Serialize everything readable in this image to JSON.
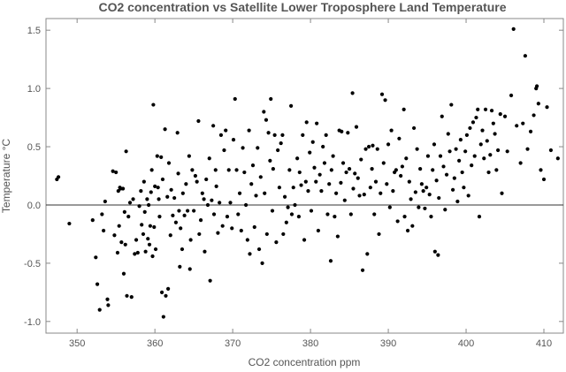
{
  "chart_data": {
    "type": "scatter",
    "title": "CO2 concentration vs Satellite Lower Troposphere Land Temperature",
    "xlabel": "CO2 concentration ppm",
    "ylabel": "Temperature °C",
    "xlim": [
      346,
      412.5
    ],
    "ylim": [
      -1.1,
      1.6
    ],
    "xticks": [
      350,
      360,
      370,
      380,
      390,
      400,
      410
    ],
    "yticks": [
      -1.0,
      -0.5,
      0.0,
      0.5,
      1.0,
      1.5
    ],
    "ytick_labels": [
      "-1.0",
      "-0.5",
      "0.0",
      "0.5",
      "1.0",
      "1.5"
    ],
    "reference_line_y": 0,
    "grid": false,
    "points": [
      [
        347.4,
        0.22
      ],
      [
        347.6,
        0.24
      ],
      [
        349.0,
        -0.16
      ],
      [
        352.0,
        -0.13
      ],
      [
        352.4,
        -0.45
      ],
      [
        352.6,
        -0.68
      ],
      [
        352.9,
        -0.9
      ],
      [
        353.2,
        -0.08
      ],
      [
        353.4,
        -0.22
      ],
      [
        353.6,
        0.03
      ],
      [
        353.9,
        -0.81
      ],
      [
        354.0,
        -0.86
      ],
      [
        354.6,
        0.29
      ],
      [
        354.8,
        -0.26
      ],
      [
        355.0,
        0.28
      ],
      [
        355.2,
        -0.41
      ],
      [
        355.3,
        0.12
      ],
      [
        355.4,
        -0.18
      ],
      [
        355.5,
        0.15
      ],
      [
        355.6,
        0.14
      ],
      [
        355.7,
        -0.32
      ],
      [
        355.9,
        0.14
      ],
      [
        356.0,
        -0.59
      ],
      [
        356.1,
        -0.06
      ],
      [
        356.2,
        -0.34
      ],
      [
        356.3,
        0.46
      ],
      [
        356.4,
        -0.78
      ],
      [
        356.6,
        -0.1
      ],
      [
        356.8,
        0.02
      ],
      [
        357.0,
        -0.79
      ],
      [
        357.2,
        0.05
      ],
      [
        357.4,
        -0.42
      ],
      [
        357.6,
        -0.3
      ],
      [
        357.8,
        -0.41
      ],
      [
        358.0,
        -0.01
      ],
      [
        358.2,
        0.12
      ],
      [
        358.3,
        -0.17
      ],
      [
        358.5,
        -0.25
      ],
      [
        358.6,
        0.2
      ],
      [
        358.7,
        -0.06
      ],
      [
        358.8,
        -0.4
      ],
      [
        359.0,
        0.05
      ],
      [
        359.1,
        -0.29
      ],
      [
        359.2,
        0.0
      ],
      [
        359.3,
        -0.34
      ],
      [
        359.4,
        -0.18
      ],
      [
        359.5,
        0.11
      ],
      [
        359.6,
        0.3
      ],
      [
        359.7,
        -0.44
      ],
      [
        359.8,
        0.86
      ],
      [
        359.9,
        -0.19
      ],
      [
        360.0,
        0.16
      ],
      [
        360.1,
        -0.38
      ],
      [
        360.3,
        0.42
      ],
      [
        360.4,
        0.15
      ],
      [
        360.5,
        0.05
      ],
      [
        360.6,
        -0.1
      ],
      [
        360.8,
        0.41
      ],
      [
        360.9,
        -0.75
      ],
      [
        361.0,
        0.22
      ],
      [
        361.1,
        -0.96
      ],
      [
        361.3,
        0.65
      ],
      [
        361.4,
        -0.78
      ],
      [
        361.6,
        0.07
      ],
      [
        361.7,
        -0.72
      ],
      [
        361.8,
        0.36
      ],
      [
        362.0,
        -0.26
      ],
      [
        362.1,
        0.13
      ],
      [
        362.3,
        -0.09
      ],
      [
        362.5,
        0.06
      ],
      [
        362.7,
        -0.15
      ],
      [
        362.9,
        0.62
      ],
      [
        363.0,
        0.27
      ],
      [
        363.1,
        -0.05
      ],
      [
        363.2,
        -0.53
      ],
      [
        363.3,
        -0.2
      ],
      [
        363.5,
        -0.38
      ],
      [
        363.6,
        0.1
      ],
      [
        363.8,
        -0.09
      ],
      [
        364.0,
        0.18
      ],
      [
        364.2,
        -0.05
      ],
      [
        364.4,
        0.42
      ],
      [
        364.5,
        -0.55
      ],
      [
        364.6,
        -0.3
      ],
      [
        364.8,
        0.3
      ],
      [
        365.0,
        -0.05
      ],
      [
        365.2,
        0.25
      ],
      [
        365.4,
        0.2
      ],
      [
        365.6,
        0.72
      ],
      [
        365.7,
        -0.25
      ],
      [
        365.9,
        -0.13
      ],
      [
        366.1,
        0.1
      ],
      [
        366.3,
        0.05
      ],
      [
        366.4,
        -0.4
      ],
      [
        366.6,
        0.22
      ],
      [
        366.8,
        0.0
      ],
      [
        367.0,
        0.4
      ],
      [
        367.1,
        -0.65
      ],
      [
        367.3,
        0.04
      ],
      [
        367.5,
        0.68
      ],
      [
        367.6,
        -0.08
      ],
      [
        367.8,
        0.3
      ],
      [
        367.9,
        0.16
      ],
      [
        368.1,
        -0.24
      ],
      [
        368.3,
        0.02
      ],
      [
        368.5,
        0.6
      ],
      [
        368.7,
        -0.18
      ],
      [
        368.9,
        0.47
      ],
      [
        369.1,
        0.64
      ],
      [
        369.3,
        -0.1
      ],
      [
        369.5,
        0.3
      ],
      [
        369.7,
        0.02
      ],
      [
        369.9,
        -0.2
      ],
      [
        370.1,
        0.56
      ],
      [
        370.3,
        0.91
      ],
      [
        370.5,
        0.3
      ],
      [
        370.7,
        -0.08
      ],
      [
        370.9,
        0.1
      ],
      [
        371.1,
        -0.22
      ],
      [
        371.3,
        0.49
      ],
      [
        371.5,
        0.28
      ],
      [
        371.7,
        0.0
      ],
      [
        371.9,
        -0.3
      ],
      [
        372.1,
        0.64
      ],
      [
        372.2,
        -0.42
      ],
      [
        372.4,
        0.18
      ],
      [
        372.6,
        0.34
      ],
      [
        372.8,
        -0.19
      ],
      [
        373.0,
        0.08
      ],
      [
        373.2,
        0.49
      ],
      [
        373.4,
        -0.38
      ],
      [
        373.6,
        0.24
      ],
      [
        373.8,
        -0.5
      ],
      [
        374.0,
        0.8
      ],
      [
        374.1,
        0.1
      ],
      [
        374.3,
        0.73
      ],
      [
        374.4,
        -0.25
      ],
      [
        374.6,
        0.62
      ],
      [
        374.8,
        0.38
      ],
      [
        374.9,
        0.91
      ],
      [
        375.1,
        -0.05
      ],
      [
        375.2,
        0.31
      ],
      [
        375.4,
        0.6
      ],
      [
        375.6,
        -0.32
      ],
      [
        375.8,
        0.47
      ],
      [
        376.0,
        0.15
      ],
      [
        376.2,
        0.53
      ],
      [
        376.4,
        0.6
      ],
      [
        376.5,
        -0.25
      ],
      [
        376.7,
        0.07
      ],
      [
        376.9,
        -0.15
      ],
      [
        377.1,
        -0.02
      ],
      [
        377.3,
        0.3
      ],
      [
        377.5,
        0.85
      ],
      [
        377.6,
        -0.08
      ],
      [
        377.8,
        0.15
      ],
      [
        378.0,
        0.0
      ],
      [
        378.3,
        0.4
      ],
      [
        378.5,
        -0.1
      ],
      [
        378.6,
        0.28
      ],
      [
        378.8,
        0.17
      ],
      [
        379.0,
        0.6
      ],
      [
        379.2,
        -0.3
      ],
      [
        379.4,
        0.2
      ],
      [
        379.5,
        0.71
      ],
      [
        379.7,
        0.12
      ],
      [
        379.9,
        0.45
      ],
      [
        380.1,
        -0.05
      ],
      [
        380.3,
        0.54
      ],
      [
        380.5,
        0.32
      ],
      [
        380.7,
        0.2
      ],
      [
        380.8,
        0.7
      ],
      [
        381.0,
        -0.22
      ],
      [
        381.2,
        0.26
      ],
      [
        381.4,
        0.12
      ],
      [
        381.6,
        0.5
      ],
      [
        381.8,
        0.36
      ],
      [
        382.0,
        0.6
      ],
      [
        382.2,
        -0.08
      ],
      [
        382.4,
        0.18
      ],
      [
        382.6,
        -0.48
      ],
      [
        382.7,
        0.3
      ],
      [
        382.9,
        0.42
      ],
      [
        383.1,
        -0.1
      ],
      [
        383.3,
        0.1
      ],
      [
        383.5,
        -0.27
      ],
      [
        383.7,
        0.64
      ],
      [
        383.9,
        0.19
      ],
      [
        384.0,
        0.63
      ],
      [
        384.2,
        0.36
      ],
      [
        384.4,
        0.04
      ],
      [
        384.6,
        0.28
      ],
      [
        384.8,
        0.62
      ],
      [
        385.0,
        0.31
      ],
      [
        385.2,
        -0.08
      ],
      [
        385.4,
        0.96
      ],
      [
        385.5,
        0.14
      ],
      [
        385.7,
        0.27
      ],
      [
        385.9,
        0.67
      ],
      [
        386.1,
        0.23
      ],
      [
        386.3,
        0.08
      ],
      [
        386.5,
        0.39
      ],
      [
        386.7,
        -0.56
      ],
      [
        386.9,
        0.09
      ],
      [
        387.1,
        0.48
      ],
      [
        387.3,
        -0.42
      ],
      [
        387.5,
        0.5
      ],
      [
        387.7,
        0.15
      ],
      [
        387.9,
        0.31
      ],
      [
        388.0,
        0.51
      ],
      [
        388.2,
        -0.08
      ],
      [
        388.4,
        0.2
      ],
      [
        388.6,
        0.48
      ],
      [
        388.8,
        -0.25
      ],
      [
        389.0,
        0.1
      ],
      [
        389.2,
        0.95
      ],
      [
        389.4,
        0.36
      ],
      [
        389.6,
        0.9
      ],
      [
        389.8,
        0.18
      ],
      [
        390.0,
        0.52
      ],
      [
        390.2,
        -0.02
      ],
      [
        390.4,
        0.64
      ],
      [
        390.6,
        0.12
      ],
      [
        390.8,
        0.28
      ],
      [
        391.0,
        0.3
      ],
      [
        391.2,
        -0.14
      ],
      [
        391.4,
        0.57
      ],
      [
        391.6,
        0.25
      ],
      [
        391.8,
        0.33
      ],
      [
        392.0,
        0.82
      ],
      [
        392.1,
        -0.1
      ],
      [
        392.3,
        0.4
      ],
      [
        392.5,
        -0.22
      ],
      [
        392.7,
        0.2
      ],
      [
        392.9,
        0.05
      ],
      [
        393.1,
        -0.18
      ],
      [
        393.3,
        0.66
      ],
      [
        393.5,
        0.11
      ],
      [
        393.7,
        0.48
      ],
      [
        393.9,
        -0.02
      ],
      [
        394.1,
        0.31
      ],
      [
        394.3,
        0.18
      ],
      [
        394.5,
        0.12
      ],
      [
        394.7,
        -0.03
      ],
      [
        394.9,
        0.15
      ],
      [
        395.1,
        0.42
      ],
      [
        395.3,
        0.09
      ],
      [
        395.5,
        -0.1
      ],
      [
        395.7,
        0.3
      ],
      [
        395.9,
        0.52
      ],
      [
        396.0,
        -0.4
      ],
      [
        396.2,
        0.21
      ],
      [
        396.4,
        -0.43
      ],
      [
        396.5,
        0.06
      ],
      [
        396.7,
        0.42
      ],
      [
        396.9,
        0.76
      ],
      [
        397.1,
        0.33
      ],
      [
        397.3,
        -0.04
      ],
      [
        397.5,
        0.26
      ],
      [
        397.7,
        0.61
      ],
      [
        397.9,
        0.46
      ],
      [
        398.1,
        0.86
      ],
      [
        398.3,
        0.13
      ],
      [
        398.5,
        0.23
      ],
      [
        398.7,
        0.48
      ],
      [
        398.9,
        0.03
      ],
      [
        399.1,
        0.38
      ],
      [
        399.3,
        0.56
      ],
      [
        399.5,
        0.28
      ],
      [
        399.7,
        0.15
      ],
      [
        399.9,
        0.46
      ],
      [
        400.1,
        0.6
      ],
      [
        400.3,
        0.08
      ],
      [
        400.5,
        0.66
      ],
      [
        400.7,
        0.34
      ],
      [
        400.9,
        0.71
      ],
      [
        401.1,
        0.42
      ],
      [
        401.3,
        0.75
      ],
      [
        401.5,
        0.82
      ],
      [
        401.7,
        -0.1
      ],
      [
        401.9,
        0.52
      ],
      [
        402.1,
        0.64
      ],
      [
        402.3,
        0.4
      ],
      [
        402.5,
        0.82
      ],
      [
        402.7,
        0.55
      ],
      [
        402.9,
        0.28
      ],
      [
        403.1,
        0.43
      ],
      [
        403.3,
        0.81
      ],
      [
        403.5,
        0.7
      ],
      [
        403.7,
        0.61
      ],
      [
        403.9,
        0.3
      ],
      [
        404.1,
        0.47
      ],
      [
        404.4,
        0.78
      ],
      [
        404.6,
        0.1
      ],
      [
        405.0,
        0.76
      ],
      [
        405.3,
        0.46
      ],
      [
        405.8,
        0.94
      ],
      [
        406.1,
        1.51
      ],
      [
        406.5,
        0.68
      ],
      [
        407.0,
        0.36
      ],
      [
        407.3,
        0.7
      ],
      [
        407.6,
        1.28
      ],
      [
        407.9,
        0.48
      ],
      [
        408.3,
        0.63
      ],
      [
        408.7,
        0.77
      ],
      [
        409.0,
        1.0
      ],
      [
        409.1,
        1.02
      ],
      [
        409.3,
        0.87
      ],
      [
        409.6,
        0.3
      ],
      [
        410.0,
        0.22
      ],
      [
        410.4,
        0.84
      ],
      [
        410.9,
        0.47
      ],
      [
        411.8,
        0.4
      ]
    ]
  }
}
